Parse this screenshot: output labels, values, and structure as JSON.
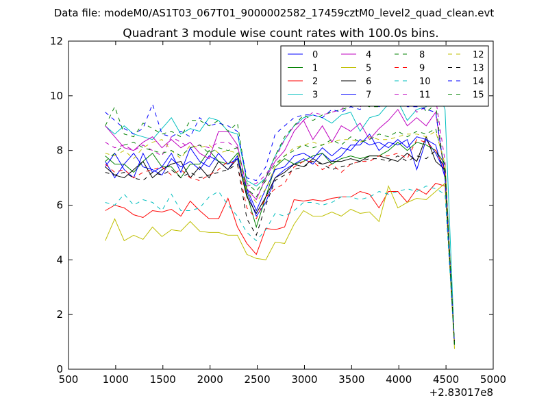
{
  "chart_data": {
    "type": "line",
    "suptitle": "Data file: modeM0/AS1T03_067T01_9000002582_17459cztM0_level2_quad_clean.evt",
    "title": "Quadrant 3 module wise count rates with 100.0s bins.",
    "xlabel": "",
    "ylabel": "",
    "offset_text": "+2.83017e8",
    "xlim": [
      500,
      5000
    ],
    "ylim": [
      0,
      12
    ],
    "xticks": [
      500,
      1000,
      1500,
      2000,
      2500,
      3000,
      3500,
      4000,
      4500,
      5000
    ],
    "xtick_labels": [
      "500",
      "1000",
      "1500",
      "2000",
      "2500",
      "3000",
      "3500",
      "4000",
      "4500",
      "5000"
    ],
    "yticks": [
      0,
      2,
      4,
      6,
      8,
      10,
      12
    ],
    "ytick_labels": [
      "0",
      "2",
      "4",
      "6",
      "8",
      "10",
      "12"
    ],
    "grid": false,
    "legend_position": "top-right",
    "legend_columns": 4,
    "x": [
      890,
      990,
      1090,
      1190,
      1290,
      1390,
      1490,
      1590,
      1690,
      1790,
      1890,
      1990,
      2090,
      2190,
      2290,
      2390,
      2490,
      2590,
      2690,
      2790,
      2890,
      2990,
      3090,
      3190,
      3290,
      3390,
      3490,
      3590,
      3690,
      3790,
      3890,
      3990,
      4090,
      4190,
      4290,
      4390,
      4490,
      4590
    ],
    "series": [
      {
        "name": "0",
        "color": "#0000ff",
        "dash": "solid",
        "values": [
          7.6,
          7.0,
          7.5,
          7.9,
          7.4,
          7.3,
          7.1,
          7.7,
          7.4,
          7.6,
          7.3,
          7.8,
          7.6,
          7.3,
          7.8,
          6.5,
          5.6,
          6.1,
          7.0,
          7.3,
          7.5,
          7.7,
          7.5,
          7.9,
          7.6,
          7.8,
          8.2,
          8.2,
          8.6,
          8.0,
          8.3,
          8.2,
          8.4,
          7.3,
          8.4,
          7.9,
          7.2,
          0.9
        ]
      },
      {
        "name": "1",
        "color": "#008000",
        "dash": "solid",
        "values": [
          7.8,
          7.5,
          7.5,
          7.2,
          7.6,
          7.9,
          7.4,
          7.4,
          7.0,
          7.5,
          7.5,
          8.0,
          7.6,
          7.5,
          7.9,
          6.4,
          5.2,
          6.3,
          7.4,
          7.7,
          7.5,
          7.6,
          7.8,
          7.9,
          7.5,
          7.7,
          7.8,
          7.7,
          7.8,
          7.8,
          8.0,
          8.3,
          8.0,
          8.3,
          8.2,
          8.0,
          7.5,
          0.9
        ]
      },
      {
        "name": "2",
        "color": "#ff0000",
        "dash": "solid",
        "values": [
          5.8,
          6.0,
          5.9,
          5.65,
          5.55,
          5.8,
          5.75,
          5.85,
          5.6,
          6.15,
          5.8,
          5.5,
          5.5,
          6.25,
          5.2,
          4.6,
          4.2,
          5.15,
          5.1,
          5.2,
          6.2,
          6.15,
          6.2,
          6.15,
          6.25,
          6.3,
          6.3,
          6.5,
          6.4,
          5.9,
          6.5,
          6.5,
          6.1,
          6.6,
          6.4,
          6.8,
          6.7,
          0.9
        ]
      },
      {
        "name": "3",
        "color": "#00bfbf",
        "dash": "solid",
        "values": [
          8.9,
          8.6,
          8.9,
          8.6,
          8.5,
          8.4,
          8.8,
          9.2,
          8.6,
          8.8,
          8.7,
          9.2,
          9.1,
          8.7,
          8.6,
          6.9,
          6.7,
          7.0,
          7.8,
          8.4,
          8.9,
          9.2,
          9.3,
          9.2,
          9.0,
          9.3,
          9.4,
          8.7,
          9.2,
          9.3,
          9.7,
          9.8,
          9.1,
          9.5,
          9.6,
          10.4,
          9.5,
          0.9
        ]
      },
      {
        "name": "4",
        "color": "#bf00bf",
        "dash": "solid",
        "values": [
          8.9,
          8.5,
          8.1,
          8.0,
          8.3,
          8.5,
          8.1,
          8.4,
          8.1,
          8.3,
          7.9,
          7.7,
          8.7,
          8.7,
          8.2,
          6.6,
          6.2,
          7.0,
          7.6,
          8.0,
          8.7,
          9.1,
          8.4,
          8.9,
          8.3,
          8.9,
          8.7,
          9.0,
          8.4,
          8.8,
          9.1,
          9.5,
          8.9,
          9.2,
          8.9,
          9.4,
          7.0,
          0.9
        ]
      },
      {
        "name": "5",
        "color": "#bfbf00",
        "dash": "solid",
        "values": [
          4.7,
          5.5,
          4.7,
          4.9,
          4.75,
          5.2,
          4.85,
          5.1,
          5.05,
          5.4,
          5.05,
          5.0,
          5.0,
          4.9,
          4.9,
          4.2,
          4.05,
          4.0,
          4.65,
          4.6,
          5.3,
          5.8,
          5.6,
          5.6,
          5.75,
          5.6,
          5.85,
          5.7,
          5.75,
          5.4,
          6.7,
          5.9,
          6.1,
          6.25,
          6.2,
          6.5,
          6.8,
          0.75
        ]
      },
      {
        "name": "6",
        "color": "#000000",
        "dash": "solid",
        "values": [
          7.4,
          7.1,
          7.0,
          7.3,
          7.6,
          7.0,
          7.3,
          7.5,
          7.6,
          7.0,
          7.4,
          7.0,
          7.6,
          7.3,
          7.7,
          6.3,
          5.7,
          6.3,
          7.0,
          7.2,
          7.5,
          7.4,
          7.7,
          7.5,
          7.6,
          7.6,
          7.7,
          7.6,
          7.8,
          7.8,
          7.7,
          7.6,
          7.9,
          7.6,
          8.5,
          7.6,
          7.3,
          0.9
        ]
      },
      {
        "name": "7",
        "color": "#0000ff",
        "dash": "solid",
        "values": [
          7.4,
          7.9,
          7.3,
          7.0,
          7.9,
          7.2,
          7.4,
          7.9,
          7.2,
          8.1,
          7.6,
          7.4,
          7.9,
          7.5,
          7.7,
          6.6,
          5.8,
          6.6,
          7.3,
          7.4,
          7.8,
          7.9,
          7.7,
          8.1,
          7.8,
          8.1,
          8.0,
          8.4,
          8.2,
          8.3,
          8.1,
          8.4,
          8.1,
          8.5,
          8.4,
          8.2,
          7.0,
          0.9
        ]
      },
      {
        "name": "8",
        "color": "#008000",
        "dash": "dashed",
        "values": [
          8.9,
          9.6,
          8.6,
          8.5,
          9.0,
          8.8,
          8.6,
          8.7,
          8.5,
          9.1,
          9.1,
          8.9,
          9.1,
          8.7,
          9.0,
          6.8,
          6.5,
          7.0,
          7.8,
          8.5,
          8.9,
          9.3,
          9.1,
          9.3,
          9.4,
          9.5,
          9.6,
          9.7,
          9.6,
          9.6,
          9.9,
          9.7,
          10.3,
          10.1,
          9.4,
          9.7,
          7.0,
          0.9
        ]
      },
      {
        "name": "9",
        "color": "#ff0000",
        "dash": "dashed",
        "values": [
          7.5,
          7.2,
          7.3,
          7.0,
          7.2,
          7.3,
          7.4,
          7.1,
          7.3,
          7.0,
          6.9,
          7.1,
          7.3,
          7.6,
          7.5,
          5.9,
          5.5,
          6.3,
          6.6,
          6.8,
          7.4,
          7.6,
          7.6,
          7.3,
          7.5,
          7.2,
          7.5,
          7.6,
          7.6,
          7.8,
          7.8,
          7.9,
          7.7,
          8.4,
          8.3,
          8.0,
          7.3,
          0.9
        ]
      },
      {
        "name": "10",
        "color": "#00bfbf",
        "dash": "dashed",
        "values": [
          6.1,
          6.0,
          6.4,
          6.0,
          6.2,
          6.1,
          5.8,
          6.4,
          5.8,
          5.8,
          5.9,
          6.3,
          6.5,
          6.0,
          5.6,
          5.0,
          4.7,
          5.1,
          5.7,
          5.6,
          5.8,
          6.1,
          6.1,
          6.0,
          6.1,
          6.3,
          6.3,
          6.2,
          6.3,
          6.5,
          6.4,
          6.5,
          6.6,
          6.5,
          6.7,
          6.6,
          6.4,
          0.9
        ]
      },
      {
        "name": "11",
        "color": "#bf00bf",
        "dash": "dashed",
        "values": [
          8.3,
          8.1,
          8.2,
          8.0,
          8.2,
          8.0,
          7.8,
          8.5,
          8.3,
          8.1,
          8.2,
          8.1,
          8.3,
          8.3,
          8.1,
          6.7,
          6.8,
          7.1,
          7.7,
          8.4,
          8.9,
          9.1,
          9.4,
          9.3,
          9.4,
          9.5,
          9.8,
          9.6,
          9.8,
          9.6,
          9.8,
          9.9,
          9.9,
          9.4,
          9.6,
          9.9,
          7.6,
          0.9
        ]
      },
      {
        "name": "12",
        "color": "#bfbf00",
        "dash": "dashed",
        "values": [
          7.9,
          7.8,
          8.0,
          7.7,
          8.1,
          8.3,
          8.4,
          8.0,
          7.7,
          8.2,
          8.1,
          8.2,
          7.9,
          8.0,
          7.9,
          6.5,
          6.1,
          6.6,
          7.4,
          7.8,
          8.1,
          8.2,
          8.3,
          8.2,
          8.3,
          8.4,
          8.4,
          8.3,
          8.5,
          8.4,
          8.4,
          8.5,
          8.6,
          8.6,
          8.5,
          8.7,
          7.5,
          0.9
        ]
      },
      {
        "name": "13",
        "color": "#000000",
        "dash": "dashed",
        "values": [
          7.2,
          7.1,
          7.2,
          7.0,
          6.9,
          7.2,
          7.1,
          7.3,
          7.0,
          7.2,
          7.0,
          7.1,
          7.2,
          7.3,
          7.5,
          5.5,
          4.9,
          6.0,
          6.9,
          7.1,
          7.3,
          7.4,
          7.6,
          7.5,
          7.3,
          7.4,
          7.5,
          7.6,
          7.7,
          7.7,
          7.6,
          7.8,
          7.6,
          7.8,
          7.7,
          8.0,
          7.3,
          0.9
        ]
      },
      {
        "name": "14",
        "color": "#0000ff",
        "dash": "dashed",
        "values": [
          9.4,
          9.1,
          8.8,
          8.6,
          8.8,
          9.7,
          8.6,
          8.5,
          8.7,
          8.5,
          9.2,
          8.9,
          9.0,
          8.9,
          8.7,
          7.0,
          6.9,
          7.4,
          8.6,
          8.9,
          9.2,
          9.3,
          9.3,
          9.2,
          9.5,
          9.4,
          9.6,
          9.5,
          9.8,
          9.6,
          9.8,
          9.9,
          9.6,
          9.6,
          9.5,
          9.4,
          7.1,
          0.9
        ]
      },
      {
        "name": "15",
        "color": "#008000",
        "dash": "dashed",
        "values": [
          7.6,
          7.9,
          8.2,
          8.3,
          8.1,
          8.0,
          7.9,
          8.0,
          7.8,
          8.1,
          8.2,
          7.9,
          8.1,
          8.0,
          8.1,
          6.6,
          6.3,
          6.9,
          7.5,
          7.8,
          8.0,
          8.2,
          8.1,
          8.2,
          8.4,
          8.2,
          8.5,
          8.3,
          8.4,
          8.6,
          8.5,
          8.7,
          8.5,
          8.7,
          8.6,
          8.8,
          7.4,
          0.9
        ]
      }
    ]
  }
}
